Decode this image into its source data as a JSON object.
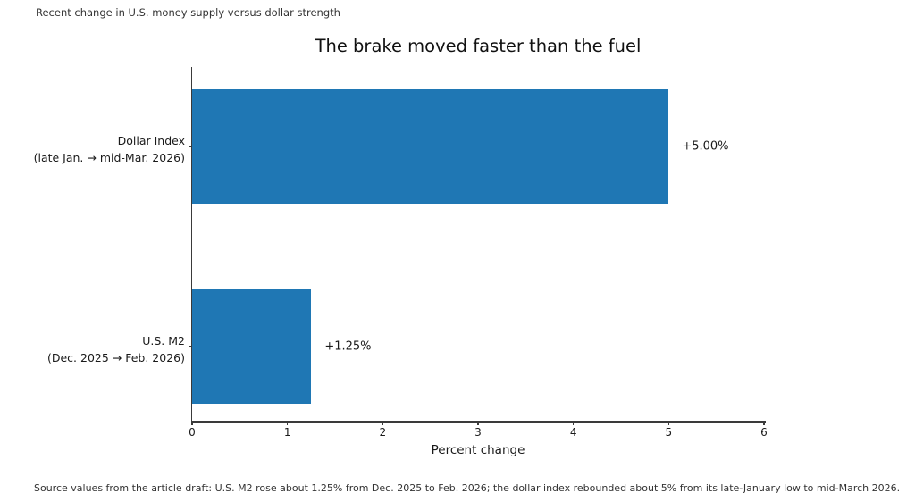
{
  "note": "Recent change in U.S. money supply versus dollar strength",
  "source": "Source values from the article draft: U.S. M2 rose about 1.25% from Dec. 2025 to Feb. 2026; the dollar index rebounded about 5% from its late-January low to mid-March 2026.",
  "chart_data": {
    "type": "bar",
    "orientation": "horizontal",
    "title": "The brake moved faster than the fuel",
    "xlabel": "Percent change",
    "ylabel": "",
    "categories": [
      [
        "Dollar Index",
        "(late Jan. → mid-Mar. 2026)"
      ],
      [
        "U.S. M2",
        "(Dec. 2025 → Feb. 2026)"
      ]
    ],
    "values": [
      5.0,
      1.25
    ],
    "value_labels": [
      "+5.00%",
      "+1.25%"
    ],
    "xlim": [
      0,
      6
    ],
    "xticks": [
      "0",
      "1",
      "2",
      "3",
      "4",
      "5",
      "6"
    ],
    "bar_color": "#1f77b4",
    "grid": false,
    "legend": null
  }
}
